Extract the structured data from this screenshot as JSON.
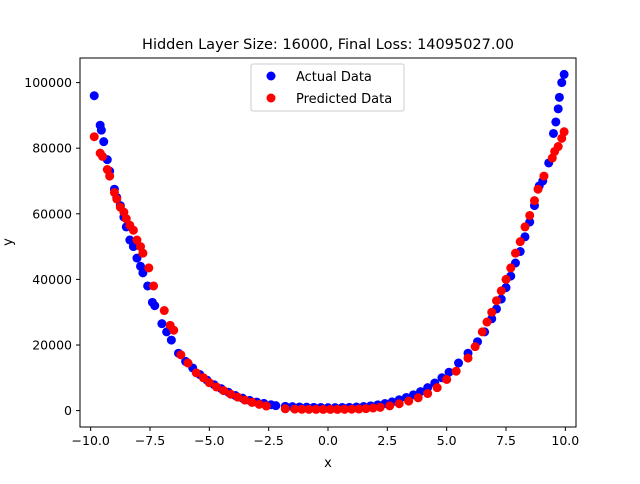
{
  "chart_data": {
    "type": "scatter",
    "title": "Hidden Layer Size: 16000, Final Loss: 14095027.00",
    "xlabel": "x",
    "ylabel": "y",
    "xlim": [
      -10.45,
      10.45
    ],
    "ylim": [
      -5000,
      107500
    ],
    "xticks": [
      -10.0,
      -7.5,
      -5.0,
      -2.5,
      0.0,
      2.5,
      5.0,
      7.5,
      10.0
    ],
    "xtick_labels": [
      "−10.0",
      "−7.5",
      "−5.0",
      "−2.5",
      "0.0",
      "2.5",
      "5.0",
      "7.5",
      "10.0"
    ],
    "yticks": [
      0,
      20000,
      40000,
      60000,
      80000,
      100000
    ],
    "ytick_labels": [
      "0",
      "20000",
      "40000",
      "60000",
      "80000",
      "100000"
    ],
    "grid": false,
    "legend": {
      "placement": "top-center"
    },
    "colors": {
      "actual": "#0000ff",
      "predicted": "#ff0000"
    },
    "series": [
      {
        "name": "Actual Data",
        "color": "#0000ff",
        "points": [
          [
            -9.85,
            96000
          ],
          [
            -9.6,
            87000
          ],
          [
            -9.55,
            85500
          ],
          [
            -9.45,
            82000
          ],
          [
            -9.3,
            76500
          ],
          [
            -9.2,
            73000
          ],
          [
            -9.0,
            67500
          ],
          [
            -8.9,
            65000
          ],
          [
            -8.75,
            62500
          ],
          [
            -8.6,
            59000
          ],
          [
            -8.5,
            56000
          ],
          [
            -8.35,
            52000
          ],
          [
            -8.2,
            50000
          ],
          [
            -8.05,
            46500
          ],
          [
            -7.9,
            44000
          ],
          [
            -7.8,
            42000
          ],
          [
            -7.6,
            38000
          ],
          [
            -7.4,
            33000
          ],
          [
            -7.3,
            32000
          ],
          [
            -7.0,
            26500
          ],
          [
            -6.8,
            24000
          ],
          [
            -6.6,
            21500
          ],
          [
            -6.3,
            17500
          ],
          [
            -6.0,
            15000
          ],
          [
            -5.7,
            13000
          ],
          [
            -5.4,
            11000
          ],
          [
            -5.1,
            9300
          ],
          [
            -4.8,
            7900
          ],
          [
            -4.5,
            6700
          ],
          [
            -4.2,
            5600
          ],
          [
            -3.9,
            4600
          ],
          [
            -3.6,
            3800
          ],
          [
            -3.3,
            3100
          ],
          [
            -3.0,
            2600
          ],
          [
            -2.7,
            2200
          ],
          [
            -2.4,
            1800
          ],
          [
            -2.2,
            1500
          ],
          [
            -1.8,
            1300
          ],
          [
            -1.5,
            1200
          ],
          [
            -1.2,
            1100
          ],
          [
            -0.9,
            1050
          ],
          [
            -0.6,
            1000
          ],
          [
            -0.3,
            950
          ],
          [
            0.0,
            900
          ],
          [
            0.3,
            900
          ],
          [
            0.6,
            950
          ],
          [
            0.9,
            1000
          ],
          [
            1.2,
            1100
          ],
          [
            1.5,
            1250
          ],
          [
            1.8,
            1450
          ],
          [
            2.1,
            1750
          ],
          [
            2.4,
            2150
          ],
          [
            2.7,
            2650
          ],
          [
            3.0,
            3300
          ],
          [
            3.3,
            4000
          ],
          [
            3.6,
            4800
          ],
          [
            3.9,
            5800
          ],
          [
            4.2,
            7000
          ],
          [
            4.5,
            8400
          ],
          [
            4.8,
            10000
          ],
          [
            5.1,
            11700
          ],
          [
            5.5,
            14500
          ],
          [
            5.9,
            17500
          ],
          [
            6.3,
            21000
          ],
          [
            6.6,
            24000
          ],
          [
            6.9,
            28000
          ],
          [
            7.1,
            31000
          ],
          [
            7.3,
            34000
          ],
          [
            7.5,
            37500
          ],
          [
            7.7,
            41000
          ],
          [
            7.9,
            45000
          ],
          [
            8.1,
            48500
          ],
          [
            8.3,
            53000
          ],
          [
            8.5,
            57500
          ],
          [
            8.7,
            62500
          ],
          [
            8.9,
            68500
          ],
          [
            9.05,
            70000
          ],
          [
            9.3,
            75500
          ],
          [
            9.5,
            84500
          ],
          [
            9.6,
            88000
          ],
          [
            9.7,
            92000
          ],
          [
            9.75,
            95500
          ],
          [
            9.85,
            100000
          ],
          [
            9.95,
            102500
          ]
        ]
      },
      {
        "name": "Predicted Data",
        "color": "#ff0000",
        "points": [
          [
            -9.85,
            83500
          ],
          [
            -9.6,
            78500
          ],
          [
            -9.5,
            77500
          ],
          [
            -9.3,
            73500
          ],
          [
            -9.2,
            71500
          ],
          [
            -9.0,
            66500
          ],
          [
            -8.9,
            64500
          ],
          [
            -8.75,
            62000
          ],
          [
            -8.6,
            60500
          ],
          [
            -8.5,
            58500
          ],
          [
            -8.35,
            56500
          ],
          [
            -8.2,
            55000
          ],
          [
            -8.05,
            52000
          ],
          [
            -7.9,
            50000
          ],
          [
            -7.8,
            48000
          ],
          [
            -7.55,
            43500
          ],
          [
            -7.35,
            38000
          ],
          [
            -6.9,
            30500
          ],
          [
            -6.65,
            26000
          ],
          [
            -6.5,
            24500
          ],
          [
            -6.2,
            17000
          ],
          [
            -5.9,
            14500
          ],
          [
            -5.55,
            11500
          ],
          [
            -5.25,
            10000
          ],
          [
            -5.0,
            8500
          ],
          [
            -4.7,
            7200
          ],
          [
            -4.4,
            6100
          ],
          [
            -4.1,
            5000
          ],
          [
            -3.8,
            4100
          ],
          [
            -3.5,
            3200
          ],
          [
            -3.2,
            2500
          ],
          [
            -2.9,
            1900
          ],
          [
            -2.6,
            1400
          ],
          [
            -1.8,
            550
          ],
          [
            -1.4,
            450
          ],
          [
            -1.1,
            400
          ],
          [
            -0.8,
            380
          ],
          [
            -0.5,
            370
          ],
          [
            -0.2,
            360
          ],
          [
            0.1,
            360
          ],
          [
            0.4,
            370
          ],
          [
            0.7,
            390
          ],
          [
            1.0,
            420
          ],
          [
            1.3,
            480
          ],
          [
            1.6,
            600
          ],
          [
            1.9,
            780
          ],
          [
            2.2,
            1000
          ],
          [
            2.6,
            1450
          ],
          [
            3.0,
            2100
          ],
          [
            3.4,
            2900
          ],
          [
            3.8,
            3900
          ],
          [
            4.2,
            5200
          ],
          [
            4.6,
            7000
          ],
          [
            5.0,
            9500
          ],
          [
            5.4,
            12000
          ],
          [
            5.9,
            16000
          ],
          [
            6.2,
            19500
          ],
          [
            6.5,
            24000
          ],
          [
            6.7,
            27000
          ],
          [
            6.9,
            30000
          ],
          [
            7.1,
            33500
          ],
          [
            7.3,
            36500
          ],
          [
            7.5,
            40000
          ],
          [
            7.7,
            43500
          ],
          [
            7.9,
            48000
          ],
          [
            8.1,
            51500
          ],
          [
            8.3,
            56000
          ],
          [
            8.5,
            59500
          ],
          [
            8.7,
            64000
          ],
          [
            8.85,
            67500
          ],
          [
            9.1,
            71500
          ],
          [
            9.45,
            77000
          ],
          [
            9.55,
            79000
          ],
          [
            9.7,
            80500
          ],
          [
            9.85,
            83000
          ],
          [
            9.95,
            85000
          ]
        ]
      }
    ]
  }
}
